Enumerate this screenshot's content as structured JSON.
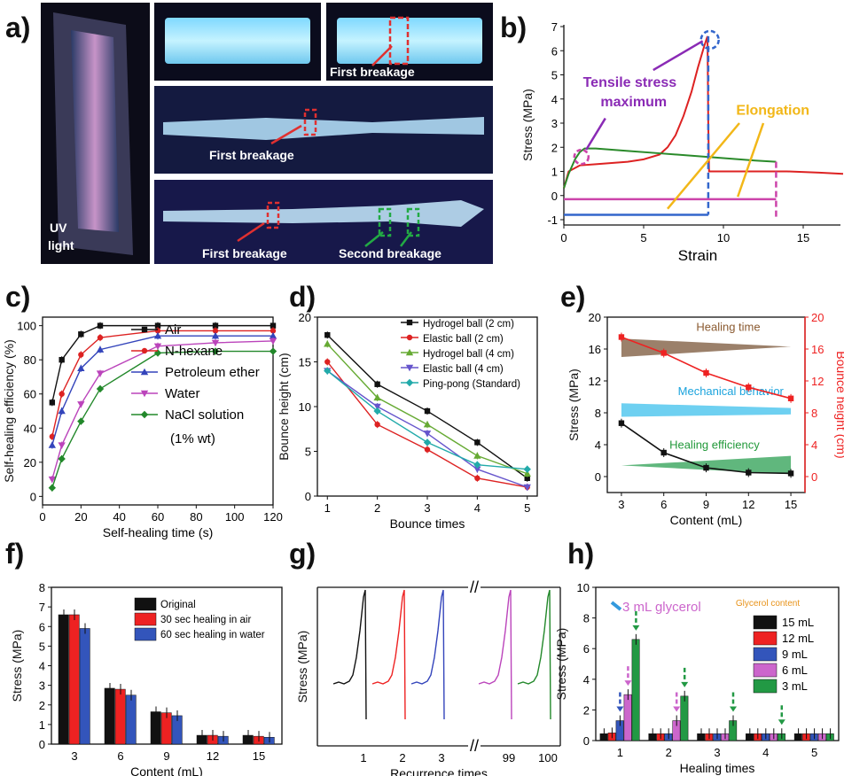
{
  "panel_letters": [
    "a)",
    "b)",
    "c)",
    "d)",
    "e)",
    "f)",
    "g)",
    "h)"
  ],
  "photos": {
    "uv_label_line1": "UV",
    "uv_label_line2": "light",
    "first_breakage": "First breakage",
    "second_breakage": "Second breakage",
    "colors": {
      "uv_glow": "#9fe8ff",
      "frame": "#0d0d14",
      "lamp": "#b58bb8",
      "red_box": "#e03030",
      "green_box": "#22aa44"
    }
  },
  "chart_data": [
    {
      "panel": "b",
      "type": "line",
      "xlabel": "Strain",
      "ylabel": "Stress (MPa)",
      "xlim": [
        0,
        17
      ],
      "ylim": [
        -1,
        7
      ],
      "xticks": [
        "0",
        "5",
        "10",
        "15"
      ],
      "yticks": [
        "-1",
        "0",
        "1",
        "2",
        "3",
        "4",
        "5",
        "6",
        "7"
      ],
      "annotations": [
        "Tensile stress",
        "maximum",
        "Elongation"
      ],
      "series": [
        {
          "color": "#dd2222",
          "x": [
            0,
            0.3,
            1,
            2,
            3,
            4,
            5,
            6,
            6.5,
            7,
            7.5,
            8,
            8.4,
            8.8,
            9.0,
            9.05,
            9.1,
            10,
            12,
            14,
            16,
            17.5
          ],
          "y": [
            0.3,
            1.0,
            1.25,
            1.3,
            1.35,
            1.4,
            1.5,
            1.7,
            2.0,
            2.5,
            3.3,
            4.3,
            5.3,
            6.2,
            6.6,
            3.0,
            1.0,
            1.0,
            1.0,
            1.0,
            0.95,
            0.9
          ]
        },
        {
          "color": "#2a8a2a",
          "x": [
            0,
            0.3,
            0.7,
            1,
            1.3,
            2,
            4,
            6,
            8,
            10,
            12,
            13.3
          ],
          "y": [
            0.3,
            0.9,
            1.5,
            1.8,
            1.95,
            1.95,
            1.85,
            1.75,
            1.65,
            1.55,
            1.45,
            1.4
          ]
        }
      ]
    },
    {
      "panel": "c",
      "type": "line",
      "xlabel": "Self-healing time (s)",
      "ylabel": "Self-healing efficiency (%)",
      "xlim": [
        0,
        120
      ],
      "ylim": [
        -5,
        105
      ],
      "xticks": [
        "0",
        "20",
        "40",
        "60",
        "80",
        "100",
        "120"
      ],
      "yticks": [
        "0",
        "20",
        "40",
        "60",
        "80",
        "100"
      ],
      "x": [
        5,
        10,
        20,
        30,
        60,
        90,
        120
      ],
      "legend_extra": "(1% wt)",
      "series": [
        {
          "name": "Air",
          "color": "#111111",
          "marker": "square",
          "values": [
            55,
            80,
            95,
            100,
            100,
            100,
            100
          ]
        },
        {
          "name": "N-hexane",
          "color": "#dd2222",
          "marker": "circle",
          "values": [
            35,
            60,
            83,
            93,
            97,
            97,
            97
          ]
        },
        {
          "name": "Petroleum ether",
          "color": "#3344bb",
          "marker": "triangle",
          "values": [
            30,
            50,
            75,
            86,
            94,
            94,
            94
          ]
        },
        {
          "name": "Water",
          "color": "#bb44bb",
          "marker": "triangle-down",
          "values": [
            10,
            30,
            54,
            72,
            88,
            90,
            91
          ]
        },
        {
          "name": "NaCl solution",
          "color": "#22882a",
          "marker": "diamond",
          "values": [
            5,
            22,
            44,
            63,
            84,
            85,
            85
          ]
        }
      ]
    },
    {
      "panel": "d",
      "type": "line",
      "xlabel": "Bounce times",
      "ylabel": "Bounce height (cm)",
      "xlim": [
        0.8,
        5.2
      ],
      "ylim": [
        0,
        20
      ],
      "xticks": [
        "1",
        "2",
        "3",
        "4",
        "5"
      ],
      "yticks": [
        "0",
        "5",
        "10",
        "15",
        "20"
      ],
      "x": [
        1,
        2,
        3,
        4,
        5
      ],
      "series": [
        {
          "name": "Hydrogel ball (2 cm)",
          "color": "#111111",
          "marker": "square",
          "values": [
            18,
            12.5,
            9.5,
            6,
            2
          ]
        },
        {
          "name": "Elastic ball (2 cm)",
          "color": "#dd2222",
          "marker": "circle",
          "values": [
            15,
            8,
            5.2,
            2,
            1
          ]
        },
        {
          "name": "Hydrogel ball (4 cm)",
          "color": "#66aa33",
          "marker": "triangle",
          "values": [
            17,
            11,
            8,
            4.5,
            2.5
          ]
        },
        {
          "name": "Elastic ball (4 cm)",
          "color": "#6655cc",
          "marker": "triangle-down",
          "values": [
            14,
            10,
            7,
            3,
            1
          ]
        },
        {
          "name": "Ping-pong (Standard)",
          "color": "#22aaaa",
          "marker": "diamond",
          "values": [
            14,
            9.5,
            6,
            3.5,
            3
          ]
        }
      ]
    },
    {
      "panel": "e",
      "type": "line",
      "xlabel": "Content (mL)",
      "ylabel": "Stress (MPa)",
      "ylabel_right": "Bounce height (cm)",
      "xlim": [
        2,
        16
      ],
      "ylim": [
        -2,
        20
      ],
      "ylim_right": [
        -2,
        20
      ],
      "xticks": [
        "3",
        "6",
        "9",
        "12",
        "15"
      ],
      "yticks": [
        "0",
        "4",
        "8",
        "12",
        "16",
        "20"
      ],
      "x": [
        3,
        6,
        9,
        12,
        15
      ],
      "annotations": [
        "Healing time",
        "Mechanical behavior",
        "Healing efficiency"
      ],
      "series": [
        {
          "color": "#111111",
          "axis": "left",
          "values": [
            6.7,
            3.0,
            1.1,
            0.5,
            0.4
          ]
        },
        {
          "color": "#ee2222",
          "axis": "right",
          "values": [
            17.5,
            15.5,
            13,
            11.2,
            9.8
          ]
        }
      ]
    },
    {
      "panel": "f",
      "type": "bar",
      "xlabel": "Content (mL)",
      "ylabel": "Stress (MPa)",
      "ylim": [
        0,
        8
      ],
      "yticks": [
        "0",
        "1",
        "2",
        "3",
        "4",
        "5",
        "6",
        "7",
        "8"
      ],
      "categories": [
        "3",
        "6",
        "9",
        "12",
        "15"
      ],
      "series": [
        {
          "name": "Original",
          "color": "#111111",
          "values": [
            6.6,
            2.85,
            1.65,
            0.45,
            0.45
          ]
        },
        {
          "name": "30 sec healing in air",
          "color": "#ee2222",
          "values": [
            6.6,
            2.8,
            1.6,
            0.45,
            0.4
          ]
        },
        {
          "name": "60 sec healing in water",
          "color": "#3355bb",
          "values": [
            5.9,
            2.5,
            1.45,
            0.4,
            0.35
          ]
        }
      ]
    },
    {
      "panel": "g",
      "type": "line",
      "xlabel": "Recurrence times",
      "ylabel": "Stress (MPa)",
      "xticks": [
        "1",
        "2",
        "3",
        "99",
        "100"
      ],
      "break_mark": "//",
      "series": [
        {
          "color": "#111111"
        },
        {
          "color": "#ee2222"
        },
        {
          "color": "#3344bb"
        },
        {
          "color": "#bb44bb"
        },
        {
          "color": "#22882a"
        }
      ]
    },
    {
      "panel": "h",
      "type": "bar",
      "xlabel": "Healing times",
      "ylabel": "Stress (MPa)",
      "ylim": [
        0,
        10
      ],
      "yticks": [
        "0",
        "2",
        "4",
        "6",
        "8",
        "10"
      ],
      "categories": [
        "1",
        "2",
        "3",
        "4",
        "5"
      ],
      "annotation": "3 mL glycerol",
      "legend_title": "Glycerol content",
      "series": [
        {
          "name": "15 mL",
          "color": "#111111",
          "values": [
            0.45,
            0.45,
            0.45,
            0.45,
            0.45
          ]
        },
        {
          "name": "12 mL",
          "color": "#ee2222",
          "values": [
            0.5,
            0.45,
            0.45,
            0.45,
            0.45
          ]
        },
        {
          "name": "9 mL",
          "color": "#3355bb",
          "values": [
            1.3,
            0.45,
            0.45,
            0.45,
            0.45
          ]
        },
        {
          "name": "6 mL",
          "color": "#cc66cc",
          "values": [
            3.0,
            1.3,
            0.45,
            0.45,
            0.45
          ]
        },
        {
          "name": "3 mL",
          "color": "#229944",
          "values": [
            6.6,
            2.9,
            1.3,
            0.45,
            0.45
          ]
        }
      ]
    }
  ]
}
